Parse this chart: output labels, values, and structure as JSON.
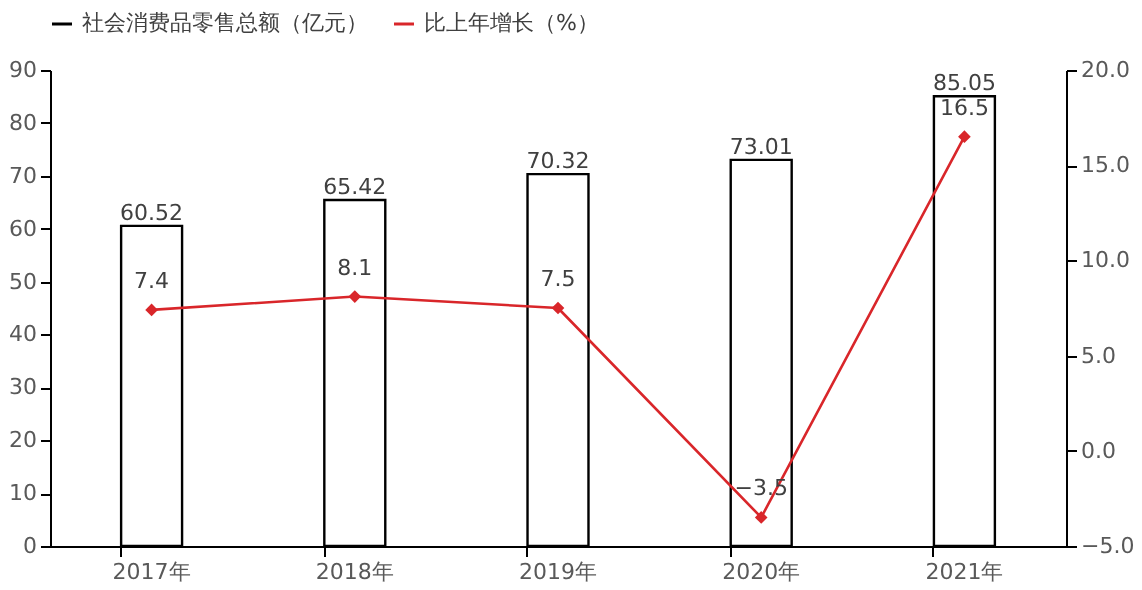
{
  "chart_data": {
    "type": "bar",
    "categories": [
      "2017年",
      "2018年",
      "2019年",
      "2020年",
      "2021年"
    ],
    "series": [
      {
        "name": "社会消费品零售总额（亿元）",
        "color": "#000000",
        "values": [
          60.52,
          65.42,
          70.32,
          73.01,
          85.05
        ]
      },
      {
        "name": "比上年增长（%）",
        "type": "line",
        "axis": "y2",
        "color": "#d9262a",
        "marker": "diamond",
        "values": [
          7.4,
          8.1,
          7.5,
          -3.5,
          16.5
        ]
      }
    ],
    "ylim": [
      0,
      90
    ],
    "yticks": [
      0,
      10,
      20,
      30,
      40,
      50,
      60,
      70,
      80,
      90
    ],
    "y2lim": [
      -5,
      20
    ],
    "y2ticks": [
      {
        "value": -5,
        "label": "−5.0"
      },
      {
        "value": 0,
        "label": "0.0"
      },
      {
        "value": 5,
        "label": "5.0"
      },
      {
        "value": 10,
        "label": "10.0"
      },
      {
        "value": 15,
        "label": "15.0"
      },
      {
        "value": 20,
        "label": "20.0"
      }
    ],
    "data_labels": true,
    "legend": "top",
    "grid": false
  }
}
